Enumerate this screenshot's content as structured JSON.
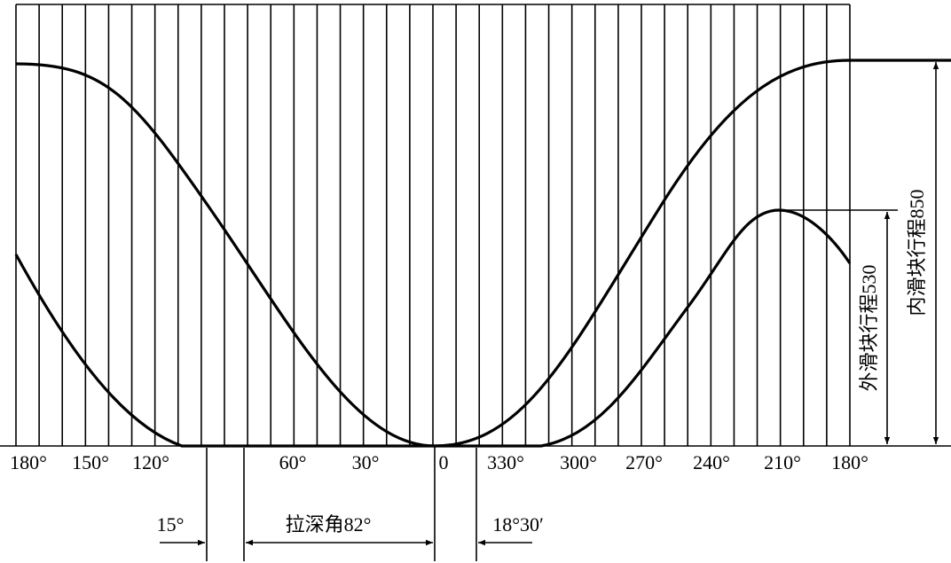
{
  "angle_labels": [
    "180°",
    "150°",
    "120°",
    "60°",
    "30°",
    "0",
    "330°",
    "300°",
    "270°",
    "240°",
    "210°",
    "180°"
  ],
  "dimensions": {
    "left_angle": "15°",
    "draw_angle": "拉深角82°",
    "right_angle": "18°30′",
    "inner_stroke": "内滑块行程850",
    "outer_stroke": "外滑块行程530"
  }
}
